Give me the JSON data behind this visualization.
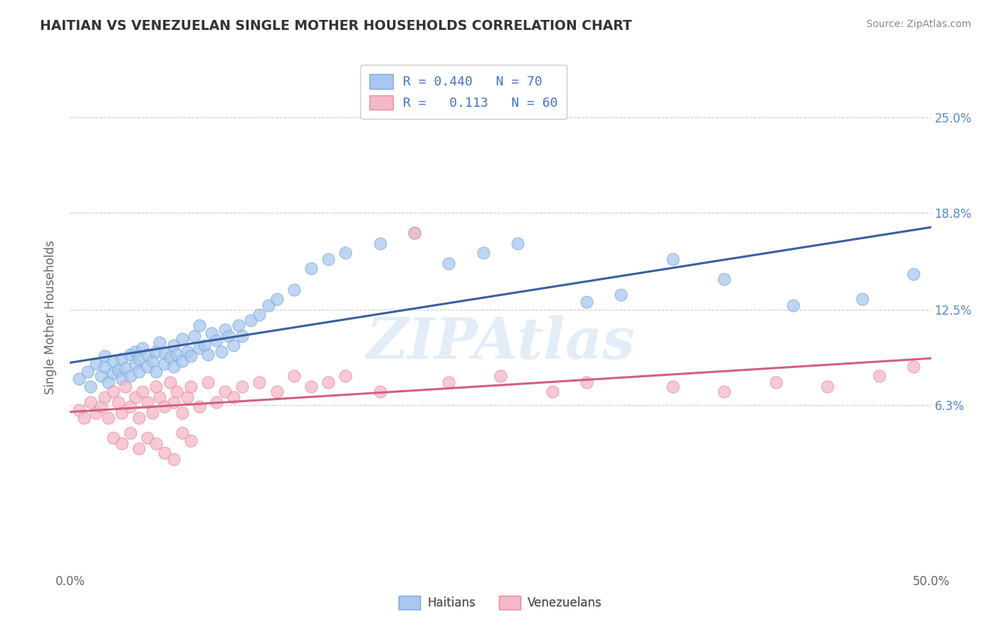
{
  "title": "HAITIAN VS VENEZUELAN SINGLE MOTHER HOUSEHOLDS CORRELATION CHART",
  "source": "Source: ZipAtlas.com",
  "ylabel": "Single Mother Households",
  "xlim": [
    0.0,
    0.5
  ],
  "ylim": [
    -0.045,
    0.285
  ],
  "xticks": [
    0.0,
    0.1,
    0.2,
    0.3,
    0.4,
    0.5
  ],
  "xticklabels": [
    "0.0%",
    "",
    "",
    "",
    "",
    "50.0%"
  ],
  "ytick_positions": [
    0.063,
    0.125,
    0.188,
    0.25
  ],
  "yticklabels": [
    "6.3%",
    "12.5%",
    "18.8%",
    "25.0%"
  ],
  "haitian_color": "#A8C8F0",
  "haitian_edge_color": "#7BAAD8",
  "venezuelan_color": "#F5B8C8",
  "venezuelan_edge_color": "#E88AA0",
  "haitian_line_color": "#3A5FA0",
  "venezuelan_line_color": "#D06080",
  "legend_haitian": "R = 0.440   N = 70",
  "legend_venezuelan": "R =   0.113   N = 60",
  "legend_label_haitians": "Haitians",
  "legend_label_venezuelans": "Venezuelans",
  "background_color": "#FFFFFF",
  "grid_color": "#CCCCCC",
  "watermark": "ZIPAtlas",
  "haitian_x": [
    0.005,
    0.01,
    0.012,
    0.015,
    0.018,
    0.02,
    0.02,
    0.022,
    0.025,
    0.025,
    0.028,
    0.03,
    0.03,
    0.032,
    0.035,
    0.035,
    0.038,
    0.038,
    0.04,
    0.04,
    0.042,
    0.045,
    0.045,
    0.048,
    0.05,
    0.05,
    0.052,
    0.055,
    0.055,
    0.058,
    0.06,
    0.06,
    0.062,
    0.065,
    0.065,
    0.068,
    0.07,
    0.072,
    0.075,
    0.075,
    0.078,
    0.08,
    0.082,
    0.085,
    0.088,
    0.09,
    0.092,
    0.095,
    0.098,
    0.1,
    0.105,
    0.11,
    0.115,
    0.12,
    0.13,
    0.14,
    0.15,
    0.16,
    0.18,
    0.2,
    0.22,
    0.24,
    0.26,
    0.3,
    0.32,
    0.35,
    0.38,
    0.42,
    0.46,
    0.49
  ],
  "haitian_y": [
    0.08,
    0.085,
    0.075,
    0.09,
    0.082,
    0.088,
    0.095,
    0.078,
    0.084,
    0.092,
    0.086,
    0.08,
    0.093,
    0.087,
    0.082,
    0.096,
    0.09,
    0.098,
    0.085,
    0.093,
    0.1,
    0.088,
    0.096,
    0.092,
    0.085,
    0.098,
    0.104,
    0.09,
    0.097,
    0.094,
    0.088,
    0.102,
    0.096,
    0.092,
    0.106,
    0.098,
    0.095,
    0.108,
    0.1,
    0.115,
    0.102,
    0.096,
    0.11,
    0.105,
    0.098,
    0.112,
    0.108,
    0.102,
    0.115,
    0.108,
    0.118,
    0.122,
    0.128,
    0.132,
    0.138,
    0.152,
    0.158,
    0.162,
    0.168,
    0.175,
    0.155,
    0.162,
    0.168,
    0.13,
    0.135,
    0.158,
    0.145,
    0.128,
    0.132,
    0.148
  ],
  "venezuelan_x": [
    0.005,
    0.008,
    0.012,
    0.015,
    0.018,
    0.02,
    0.022,
    0.025,
    0.028,
    0.03,
    0.032,
    0.035,
    0.038,
    0.04,
    0.042,
    0.045,
    0.048,
    0.05,
    0.052,
    0.055,
    0.058,
    0.06,
    0.062,
    0.065,
    0.068,
    0.07,
    0.075,
    0.08,
    0.085,
    0.09,
    0.095,
    0.1,
    0.11,
    0.12,
    0.13,
    0.14,
    0.15,
    0.16,
    0.18,
    0.2,
    0.22,
    0.25,
    0.28,
    0.3,
    0.35,
    0.38,
    0.41,
    0.44,
    0.47,
    0.49,
    0.025,
    0.03,
    0.035,
    0.04,
    0.045,
    0.05,
    0.055,
    0.06,
    0.065,
    0.07
  ],
  "venezuelan_y": [
    0.06,
    0.055,
    0.065,
    0.058,
    0.062,
    0.068,
    0.055,
    0.072,
    0.065,
    0.058,
    0.075,
    0.062,
    0.068,
    0.055,
    0.072,
    0.065,
    0.058,
    0.075,
    0.068,
    0.062,
    0.078,
    0.065,
    0.072,
    0.058,
    0.068,
    0.075,
    0.062,
    0.078,
    0.065,
    0.072,
    0.068,
    0.075,
    0.078,
    0.072,
    0.082,
    0.075,
    0.078,
    0.082,
    0.072,
    0.175,
    0.078,
    0.082,
    0.072,
    0.078,
    0.075,
    0.072,
    0.078,
    0.075,
    0.082,
    0.088,
    0.042,
    0.038,
    0.045,
    0.035,
    0.042,
    0.038,
    0.032,
    0.028,
    0.045,
    0.04
  ]
}
